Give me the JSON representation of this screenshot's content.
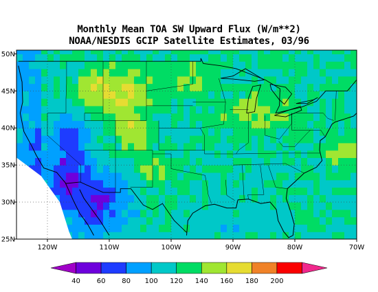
{
  "title_line1": "Monthly Mean TOA SW Upward Flux (W/m**2)",
  "title_line2": "NOAA/NESDIS GCIP Satellite Estimates, 03/96",
  "map": {
    "lon_range": [
      -125,
      -70
    ],
    "lat_range": [
      25,
      50.5
    ],
    "x_tick_labels": [
      {
        "lon": -120,
        "label": "120W"
      },
      {
        "lon": -110,
        "label": "110W"
      },
      {
        "lon": -100,
        "label": "100W"
      },
      {
        "lon": -90,
        "label": "90W"
      },
      {
        "lon": -80,
        "label": "80W"
      },
      {
        "lon": -70,
        "label": "70W"
      }
    ],
    "y_tick_labels": [
      {
        "lat": 25,
        "label": "25N"
      },
      {
        "lat": 30,
        "label": "30N"
      },
      {
        "lat": 35,
        "label": "35N"
      },
      {
        "lat": 40,
        "label": "40N"
      },
      {
        "lat": 45,
        "label": "45N"
      },
      {
        "lat": 50,
        "label": "50N"
      }
    ],
    "grid_lines": "dotted at 10° longitude, 5° latitude"
  },
  "colorbar": {
    "labels": [
      "40",
      "60",
      "80",
      "100",
      "120",
      "140",
      "160",
      "180",
      "200"
    ],
    "colors": [
      "#a000c8",
      "#6e00dc",
      "#1e3cff",
      "#00a0ff",
      "#00c8c8",
      "#00dc64",
      "#a0e632",
      "#e6dc32",
      "#f08228",
      "#fa0000",
      "#f0288c"
    ]
  }
}
